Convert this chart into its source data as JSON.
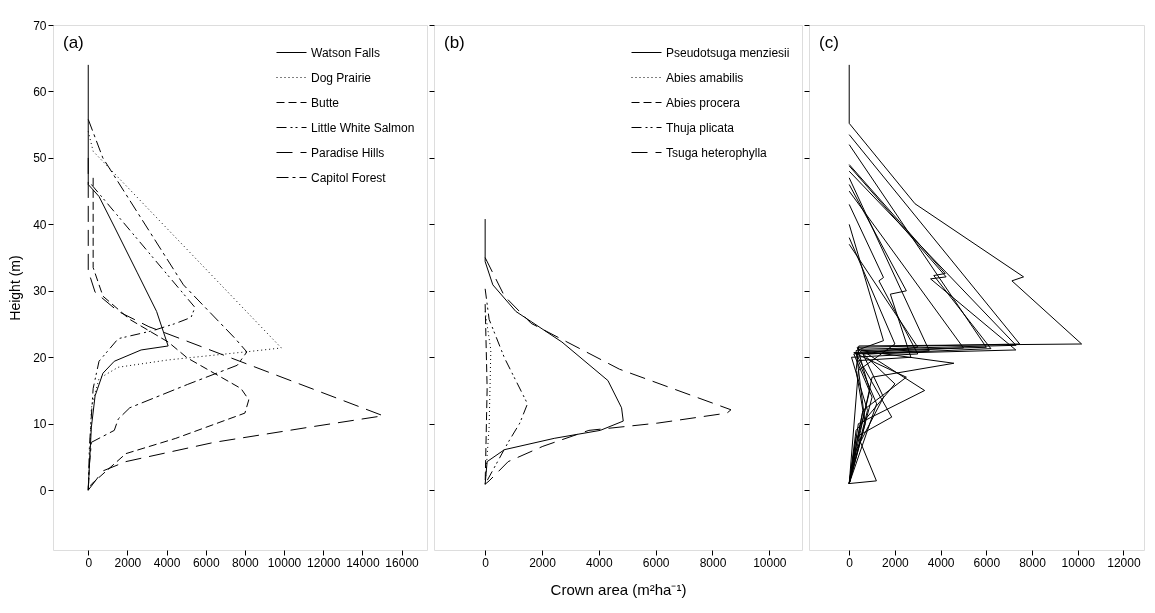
{
  "chart_data": [
    {
      "type": "line",
      "annotations": [
        "(a)"
      ],
      "ylabel": "Height (m)",
      "xlim": [
        -1800,
        17300
      ],
      "ylim": [
        -9,
        70
      ],
      "xticks": [
        0,
        2000,
        4000,
        6000,
        8000,
        10000,
        12000,
        14000,
        16000
      ],
      "yticks": [
        0,
        10,
        20,
        30,
        40,
        50,
        60,
        70
      ],
      "grid": false,
      "legend": "top right",
      "series": [
        {
          "name": "Watson Falls",
          "color": "#000000",
          "line_style": "solid",
          "x": [
            0,
            0,
            550,
            1340,
            2510,
            3490,
            4080,
            2700,
            1330,
            750,
            350,
            160,
            60,
            0
          ],
          "values": [
            64,
            46,
            44.2,
            39.6,
            32.7,
            26.9,
            21.7,
            21.1,
            19.4,
            17.6,
            14.2,
            9.5,
            3.8,
            0
          ]
        },
        {
          "name": "Dog Prairie",
          "color": "#000000",
          "line_style": "dotted",
          "x": [
            0,
            250,
            9860,
            8000,
            4080,
            1530,
            550,
            160,
            60,
            0
          ],
          "values": [
            54,
            51,
            21.4,
            20.8,
            19.6,
            18.5,
            16.8,
            12.4,
            3.8,
            0
          ]
        },
        {
          "name": "Butte",
          "color": "#000000",
          "line_style": "dashed",
          "x": [
            250,
            250,
            750,
            2120,
            4080,
            5060,
            6430,
            7800,
            8200,
            8000,
            4470,
            1920,
            160,
            0
          ],
          "values": [
            47,
            33.5,
            29.2,
            25.7,
            22.3,
            19.9,
            17.6,
            15.3,
            13.6,
            11.6,
            7.8,
            5.5,
            0.9,
            0
          ]
        },
        {
          "name": "Little White Salmon",
          "color": "#000000",
          "line_style": "dashed",
          "x": [
            160,
            5450,
            5250,
            4470,
            3290,
            1530,
            550,
            250,
            60,
            0
          ],
          "values": [
            46,
            27.5,
            26,
            25.1,
            24,
            22.8,
            19.4,
            15.3,
            6.6,
            0
          ]
        },
        {
          "name": "Paradise Hills",
          "color": "#000000",
          "line_style": "dashed",
          "x": [
            0,
            0,
            350,
            1530,
            3100,
            15060,
            11330,
            6430,
            1920,
            750,
            0
          ],
          "values": [
            50,
            33,
            29.8,
            26.9,
            24.6,
            11.2,
            9.5,
            7.2,
            4.3,
            2.9,
            0
          ]
        },
        {
          "name": "Capitol Forest",
          "color": "#000000",
          "line_style": "dashed",
          "x": [
            0,
            745,
            4860,
            7510,
            8100,
            7610,
            5060,
            2120,
            1530,
            1330,
            160,
            60,
            0
          ],
          "values": [
            55.8,
            50,
            30.9,
            22.8,
            20.8,
            18.8,
            15.9,
            12.4,
            10.7,
            9,
            7.2,
            3.8,
            0
          ]
        }
      ]
    },
    {
      "type": "line",
      "annotations": [
        "(b)"
      ],
      "xlabel": "Crown area (m²ha⁻¹)",
      "xlim": [
        -1800,
        11150
      ],
      "ylim": [
        -9,
        70
      ],
      "xticks": [
        0,
        2000,
        4000,
        6000,
        8000,
        10000
      ],
      "yticks": [
        0,
        10,
        20,
        30,
        40,
        50,
        60,
        70
      ],
      "tick_labels": "x",
      "grid": false,
      "legend": "top right",
      "series": [
        {
          "name": "Pseudotsuga menziesii",
          "color": "#000000",
          "line_style": "solid",
          "x": [
            0,
            0,
            270,
            1080,
            2700,
            4320,
            4800,
            4860,
            4050,
            2430,
            680,
            70,
            0
          ],
          "values": [
            40.8,
            34.4,
            30.9,
            26.9,
            22.3,
            16.5,
            12.4,
            10.4,
            9,
            7.8,
            6.1,
            4.3,
            0.9
          ]
        },
        {
          "name": "Abies amabilis",
          "color": "#000000",
          "line_style": "dotted",
          "x": [
            0,
            200,
            140,
            0
          ],
          "values": [
            26.9,
            21.1,
            9.5,
            0.9
          ]
        },
        {
          "name": "Abies procera",
          "color": "#000000",
          "line_style": "dashed",
          "x": [
            0,
            70,
            0
          ],
          "values": [
            28,
            15.3,
            0.9
          ]
        },
        {
          "name": "Thuja plicata",
          "color": "#000000",
          "line_style": "dashed",
          "x": [
            0,
            140,
            680,
            1490,
            1220,
            810,
            0
          ],
          "values": [
            30.3,
            25.7,
            19.9,
            13,
            10.1,
            7.2,
            0.9
          ]
        },
        {
          "name": "Tsuga heterophylla",
          "color": "#000000",
          "line_style": "dashed",
          "x": [
            0,
            680,
            1620,
            4730,
            8650,
            8510,
            6080,
            3650,
            2030,
            810,
            140,
            0
          ],
          "values": [
            35,
            29.2,
            25.1,
            18.2,
            12.1,
            11.6,
            10.1,
            9,
            6.6,
            4.3,
            1.4,
            0.9
          ]
        }
      ]
    },
    {
      "type": "line",
      "annotations": [
        "(c)"
      ],
      "xlim": [
        -1760,
        12900
      ],
      "ylim": [
        -9,
        70
      ],
      "xticks": [
        0,
        2000,
        4000,
        6000,
        8000,
        10000,
        12000
      ],
      "yticks": [
        0,
        10,
        20,
        30,
        40,
        50,
        60,
        70
      ],
      "tick_labels": "x",
      "grid": false,
      "series": [
        {
          "color": "#000000",
          "line_style": "solid",
          "x": [
            0,
            0,
            2880,
            7630,
            7120,
            10170,
            420,
            300,
            600,
            200,
            0
          ],
          "values": [
            64,
            55.2,
            43.1,
            32.1,
            31.5,
            22,
            21.7,
            18,
            12,
            5,
            1
          ]
        },
        {
          "color": "#000000",
          "line_style": "solid",
          "x": [
            0,
            7460,
            350,
            900,
            400,
            1190,
            0
          ],
          "values": [
            53.5,
            22,
            21.5,
            15,
            8,
            1.4,
            1
          ]
        },
        {
          "color": "#000000",
          "line_style": "solid",
          "x": [
            0,
            4240,
            3560,
            7290,
            600,
            1500,
            300,
            0
          ],
          "values": [
            48.8,
            32.1,
            31.8,
            21.1,
            20.5,
            14,
            6,
            1
          ]
        },
        {
          "color": "#000000",
          "line_style": "solid",
          "x": [
            0,
            6000,
            500,
            4580,
            1000,
            500,
            0
          ],
          "values": [
            52,
            21.5,
            21,
            19.1,
            17,
            9,
            1
          ]
        },
        {
          "color": "#000000",
          "line_style": "solid",
          "x": [
            0,
            4200,
            3700,
            6200,
            800,
            3300,
            400,
            0
          ],
          "values": [
            49,
            32.6,
            32.3,
            21.3,
            20.5,
            15,
            10,
            1
          ]
        },
        {
          "color": "#000000",
          "line_style": "solid",
          "x": [
            0,
            3500,
            300,
            1860,
            300,
            0
          ],
          "values": [
            47,
            21,
            20.5,
            11,
            8,
            1
          ]
        },
        {
          "color": "#000000",
          "line_style": "solid",
          "x": [
            0,
            5000,
            200,
            2500,
            600,
            0
          ],
          "values": [
            45,
            21.4,
            20.7,
            17,
            12,
            1
          ]
        },
        {
          "color": "#000000",
          "line_style": "solid",
          "x": [
            0,
            2500,
            1800,
            2700,
            400,
            1200,
            0
          ],
          "values": [
            46,
            30,
            29.5,
            20,
            19.5,
            13,
            1
          ]
        },
        {
          "color": "#000000",
          "line_style": "solid",
          "x": [
            0,
            1500,
            1300,
            3000,
            100,
            800,
            0
          ],
          "values": [
            43,
            32,
            31.5,
            20.5,
            20,
            12,
            1
          ]
        },
        {
          "color": "#000000",
          "line_style": "solid",
          "x": [
            0,
            7300,
            400,
            2000,
            300,
            0
          ],
          "values": [
            48,
            21.8,
            21.2,
            16,
            9,
            1
          ]
        },
        {
          "color": "#000000",
          "line_style": "solid",
          "x": [
            0,
            2000,
            400,
            0
          ],
          "values": [
            38,
            22,
            18,
            1
          ]
        },
        {
          "color": "#000000",
          "line_style": "solid",
          "x": [
            0,
            3000,
            200,
            1000,
            0
          ],
          "values": [
            37,
            21.5,
            20.5,
            14,
            1
          ]
        },
        {
          "color": "#000000",
          "line_style": "solid",
          "x": [
            0,
            1500,
            300,
            700,
            0
          ],
          "values": [
            40,
            22.5,
            21,
            10,
            1
          ]
        }
      ]
    }
  ]
}
